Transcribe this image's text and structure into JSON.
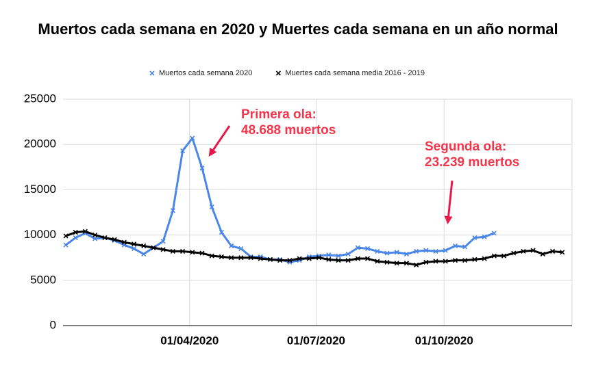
{
  "chart_data": {
    "type": "line",
    "title": "Muertos cada semana en 2020 y Muertes cada semana en un año normal",
    "x": [
      "2020-01-03",
      "2020-01-10",
      "2020-01-17",
      "2020-01-24",
      "2020-01-31",
      "2020-02-07",
      "2020-02-14",
      "2020-02-21",
      "2020-02-28",
      "2020-03-06",
      "2020-03-13",
      "2020-03-20",
      "2020-03-27",
      "2020-04-03",
      "2020-04-10",
      "2020-04-17",
      "2020-04-24",
      "2020-05-01",
      "2020-05-08",
      "2020-05-15",
      "2020-05-22",
      "2020-05-29",
      "2020-06-05",
      "2020-06-12",
      "2020-06-19",
      "2020-06-26",
      "2020-07-03",
      "2020-07-10",
      "2020-07-17",
      "2020-07-24",
      "2020-07-31",
      "2020-08-07",
      "2020-08-14",
      "2020-08-21",
      "2020-08-28",
      "2020-09-04",
      "2020-09-11",
      "2020-09-18",
      "2020-09-25",
      "2020-10-02",
      "2020-10-09",
      "2020-10-16",
      "2020-10-23",
      "2020-10-30",
      "2020-11-06",
      "2020-11-13",
      "2020-11-20",
      "2020-11-27",
      "2020-12-04",
      "2020-12-11",
      "2020-12-18",
      "2020-12-25"
    ],
    "series": [
      {
        "name": "Muertos cada semana 2020",
        "color": "#4a86e8",
        "values": [
          8900,
          9700,
          10200,
          9600,
          9700,
          9400,
          8900,
          8500,
          7900,
          8600,
          9300,
          12700,
          19300,
          20700,
          17400,
          13100,
          10300,
          8800,
          8500,
          7600,
          7600,
          7300,
          7300,
          7000,
          7200,
          7600,
          7700,
          7800,
          7700,
          7900,
          8600,
          8500,
          8200,
          8000,
          8100,
          7900,
          8200,
          8300,
          8200,
          8300,
          8800,
          8700,
          9700,
          9800,
          10200,
          null,
          null,
          null,
          null,
          null,
          null,
          null
        ]
      },
      {
        "name": "Muertes cada semana media 2016 - 2019",
        "color": "#000000",
        "values": [
          9900,
          10300,
          10400,
          10000,
          9700,
          9500,
          9200,
          9000,
          8800,
          8600,
          8400,
          8200,
          8200,
          8100,
          8000,
          7700,
          7600,
          7500,
          7500,
          7500,
          7400,
          7300,
          7200,
          7200,
          7400,
          7400,
          7500,
          7300,
          7200,
          7200,
          7400,
          7400,
          7100,
          7000,
          6900,
          6900,
          6700,
          7000,
          7100,
          7100,
          7200,
          7200,
          7300,
          7400,
          7700,
          7700,
          8000,
          8200,
          8300,
          7900,
          8200,
          8100
        ]
      }
    ],
    "xlim": [
      "2020-01-01",
      "2021-01-01"
    ],
    "xticks": [
      {
        "value": "2020-04-01",
        "label": "01/04/2020"
      },
      {
        "value": "2020-07-01",
        "label": "01/07/2020"
      },
      {
        "value": "2020-10-01",
        "label": "01/10/2020"
      }
    ],
    "ylim": [
      0,
      25000
    ],
    "yticks": [
      0,
      5000,
      10000,
      15000,
      20000,
      25000
    ],
    "grid": true,
    "legend": "top",
    "annotations": [
      {
        "lines": [
          "Primera ola:",
          "48.688 muertos"
        ],
        "color": "#f4364c"
      },
      {
        "lines": [
          "Segunda ola:",
          "23.239 muertos"
        ],
        "color": "#f4364c"
      }
    ]
  }
}
